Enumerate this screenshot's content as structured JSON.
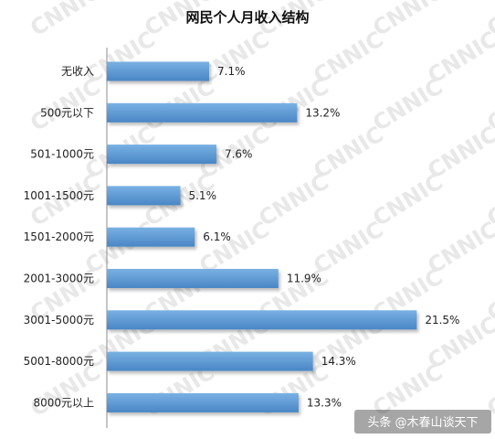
{
  "chart_data": {
    "type": "bar",
    "orientation": "horizontal",
    "title": "网民个人月收入结构",
    "categories": [
      "无收入",
      "500元以下",
      "501-1000元",
      "1001-1500元",
      "1501-2000元",
      "2001-3000元",
      "3001-5000元",
      "5001-8000元",
      "8000元以上"
    ],
    "values": [
      7.1,
      13.2,
      7.6,
      5.1,
      6.1,
      11.9,
      21.5,
      14.3,
      13.3
    ],
    "value_labels": [
      "7.1%",
      "13.2%",
      "7.6%",
      "5.1%",
      "6.1%",
      "11.9%",
      "21.5%",
      "14.3%",
      "13.3%"
    ],
    "xlim": [
      0,
      23
    ],
    "bar_color": "#5b9bd5",
    "grid": false,
    "legend": "none"
  },
  "watermark": "CNNIC",
  "credit": "头条 @木春山谈天下"
}
